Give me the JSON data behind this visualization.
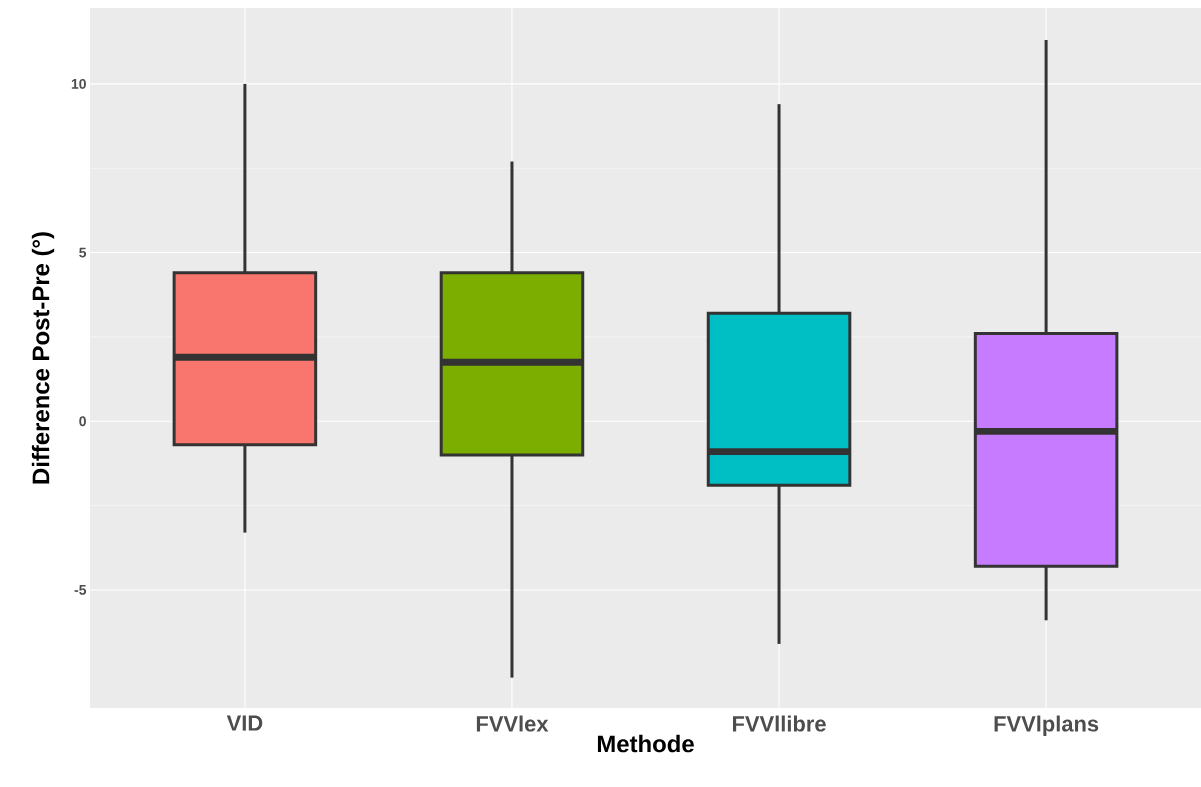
{
  "chart_data": {
    "type": "box",
    "xlabel": "Methode",
    "ylabel": "Difference Post-Pre (°)",
    "categories": [
      "VID",
      "FVVlex",
      "FVVllibre",
      "FVVlplans"
    ],
    "boxes": [
      {
        "low": -3.3,
        "q1": -0.7,
        "median": 1.9,
        "q3": 4.4,
        "high": 10.0
      },
      {
        "low": -7.6,
        "q1": -1.0,
        "median": 1.75,
        "q3": 4.4,
        "high": 7.7
      },
      {
        "low": -6.6,
        "q1": -1.9,
        "median": -0.9,
        "q3": 3.2,
        "high": 9.4
      },
      {
        "low": -5.9,
        "q1": -4.3,
        "median": -0.3,
        "q3": 2.6,
        "high": 11.3
      }
    ],
    "colors": [
      "#f8766d",
      "#7cae00",
      "#00bfc4",
      "#c77cff"
    ],
    "ylim": [
      -8.5,
      12.25
    ],
    "yticks": [
      -5,
      0,
      5,
      10
    ],
    "grid": true
  }
}
